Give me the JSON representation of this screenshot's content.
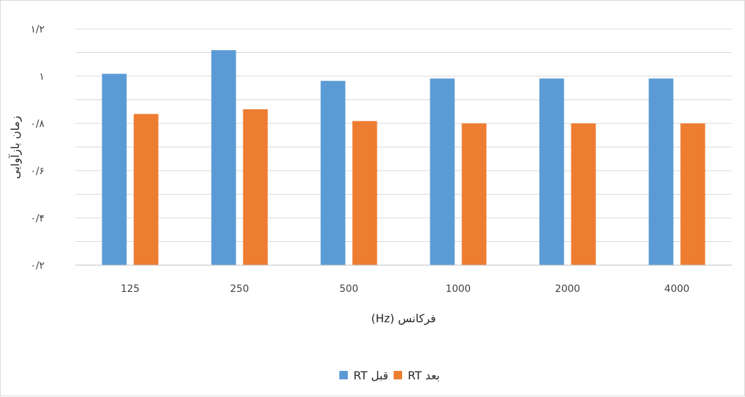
{
  "chart_data": {
    "type": "bar",
    "categories": [
      "125",
      "250",
      "500",
      "1000",
      "2000",
      "4000"
    ],
    "y_tick_labels": [
      "۰/۲",
      "۰/۴",
      "۰/۶",
      "۰/۸",
      "۱",
      "۱/۲"
    ],
    "y_ticks": [
      0.2,
      0.4,
      0.6,
      0.8,
      1.0,
      1.2
    ],
    "ylim": [
      0.2,
      1.2
    ],
    "grid": true,
    "xlabel": "فرکانس (Hz)",
    "ylabel": "زمان بازآوایی",
    "legend_position": "bottom",
    "series": [
      {
        "name": "RT قبل",
        "color": "#5b9bd5",
        "values": [
          1.01,
          1.11,
          0.98,
          0.99,
          0.99,
          0.99
        ]
      },
      {
        "name": "RT بعد",
        "color": "#ed7d31",
        "values": [
          0.84,
          0.86,
          0.81,
          0.8,
          0.8,
          0.8
        ]
      }
    ]
  }
}
